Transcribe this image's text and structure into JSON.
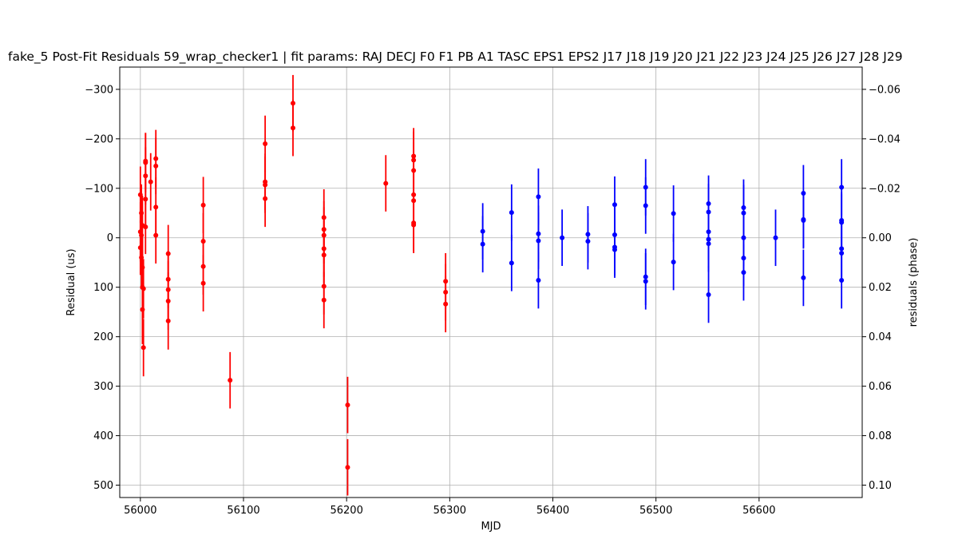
{
  "chart_data": {
    "type": "scatter",
    "title": "fake_5 Post-Fit Residuals 59_wrap_checker1 | fit params: RAJ DECJ F0 F1 PB A1 TASC EPS1 EPS2 J17 J18 J19 J20 J21 J22 J23 J24 J25 J26 J27 J28 J29",
    "xlabel": "MJD",
    "ylabel": "Residual (us)",
    "y2label": "residuals (phase)",
    "xlim": [
      55980,
      56700
    ],
    "ylim": [
      525,
      -345
    ],
    "y2lim": [
      0.105,
      -0.069
    ],
    "y_inverted": true,
    "grid": true,
    "legend": "none",
    "x_ticks": [
      56000,
      56100,
      56200,
      56300,
      56400,
      56500,
      56600
    ],
    "x_tick_labels": [
      "56000",
      "56100",
      "56200",
      "56300",
      "56400",
      "56500",
      "56600"
    ],
    "y_ticks": [
      -300,
      -200,
      -100,
      0,
      100,
      200,
      300,
      400,
      500
    ],
    "y_tick_labels": [
      "−300",
      "−200",
      "−100",
      "0",
      "100",
      "200",
      "300",
      "400",
      "500"
    ],
    "y2_ticks": [
      -0.06,
      -0.04,
      -0.02,
      0.0,
      0.02,
      0.04,
      0.06,
      0.08,
      0.1
    ],
    "y2_tick_labels": [
      "−0.06",
      "−0.04",
      "−0.02",
      "0.00",
      "0.02",
      "0.04",
      "0.06",
      "0.08",
      "0.10"
    ],
    "series": [
      {
        "color": "#ff0000",
        "points": [
          {
            "x": 56000,
            "y": -87,
            "err": 57
          },
          {
            "x": 56000,
            "y": -12,
            "err": 60
          },
          {
            "x": 56000,
            "y": 20,
            "err": 55
          },
          {
            "x": 56001,
            "y": 40,
            "err": 60
          },
          {
            "x": 56001,
            "y": -50,
            "err": 58
          },
          {
            "x": 56001,
            "y": -5,
            "err": 60
          },
          {
            "x": 56002,
            "y": 145,
            "err": 70
          },
          {
            "x": 56002,
            "y": 100,
            "err": 65
          },
          {
            "x": 56002,
            "y": -25,
            "err": 60
          },
          {
            "x": 56003,
            "y": 222,
            "err": 58
          },
          {
            "x": 56003,
            "y": 103,
            "err": 60
          },
          {
            "x": 56002,
            "y": 60,
            "err": 60
          },
          {
            "x": 56005,
            "y": -152,
            "err": 60
          },
          {
            "x": 56005,
            "y": -125,
            "err": 58
          },
          {
            "x": 56005,
            "y": -78,
            "err": 55
          },
          {
            "x": 56005,
            "y": -22,
            "err": 55
          },
          {
            "x": 56005,
            "y": -155,
            "err": 57
          },
          {
            "x": 56010,
            "y": -113,
            "err": 58
          },
          {
            "x": 56015,
            "y": -160,
            "err": 58
          },
          {
            "x": 56015,
            "y": -145,
            "err": 57
          },
          {
            "x": 56015,
            "y": -62,
            "err": 60
          },
          {
            "x": 56015,
            "y": -5,
            "err": 57
          },
          {
            "x": 56027,
            "y": 32,
            "err": 58
          },
          {
            "x": 56027,
            "y": 84,
            "err": 58
          },
          {
            "x": 56027,
            "y": 105,
            "err": 58
          },
          {
            "x": 56027,
            "y": 128,
            "err": 58
          },
          {
            "x": 56027,
            "y": 168,
            "err": 58
          },
          {
            "x": 56061,
            "y": -66,
            "err": 57
          },
          {
            "x": 56061,
            "y": 7,
            "err": 57
          },
          {
            "x": 56061,
            "y": 58,
            "err": 57
          },
          {
            "x": 56061,
            "y": 92,
            "err": 57
          },
          {
            "x": 56087,
            "y": 288,
            "err": 57
          },
          {
            "x": 56121,
            "y": -190,
            "err": 57
          },
          {
            "x": 56121,
            "y": -113,
            "err": 57
          },
          {
            "x": 56121,
            "y": -107,
            "err": 57
          },
          {
            "x": 56121,
            "y": -79,
            "err": 57
          },
          {
            "x": 56148,
            "y": -272,
            "err": 57
          },
          {
            "x": 56148,
            "y": -222,
            "err": 57
          },
          {
            "x": 56178,
            "y": -41,
            "err": 57
          },
          {
            "x": 56178,
            "y": -17,
            "err": 57
          },
          {
            "x": 56178,
            "y": -5,
            "err": 57
          },
          {
            "x": 56178,
            "y": 22,
            "err": 57
          },
          {
            "x": 56178,
            "y": 35,
            "err": 57
          },
          {
            "x": 56178,
            "y": 98,
            "err": 57
          },
          {
            "x": 56178,
            "y": 126,
            "err": 57
          },
          {
            "x": 56201,
            "y": 338,
            "err": 57
          },
          {
            "x": 56201,
            "y": 464,
            "err": 57
          },
          {
            "x": 56238,
            "y": -110,
            "err": 57
          },
          {
            "x": 56265,
            "y": -165,
            "err": 57
          },
          {
            "x": 56265,
            "y": -157,
            "err": 57
          },
          {
            "x": 56265,
            "y": -136,
            "err": 57
          },
          {
            "x": 56265,
            "y": -87,
            "err": 57
          },
          {
            "x": 56265,
            "y": -75,
            "err": 57
          },
          {
            "x": 56265,
            "y": -30,
            "err": 57
          },
          {
            "x": 56265,
            "y": -26,
            "err": 57
          },
          {
            "x": 56296,
            "y": 88,
            "err": 57
          },
          {
            "x": 56296,
            "y": 110,
            "err": 57
          },
          {
            "x": 56296,
            "y": 134,
            "err": 57
          }
        ]
      },
      {
        "color": "#0000ff",
        "points": [
          {
            "x": 56332,
            "y": -13,
            "err": 57
          },
          {
            "x": 56332,
            "y": 13,
            "err": 57
          },
          {
            "x": 56360,
            "y": -51,
            "err": 57
          },
          {
            "x": 56360,
            "y": 51,
            "err": 57
          },
          {
            "x": 56386,
            "y": -83,
            "err": 57
          },
          {
            "x": 56386,
            "y": -8,
            "err": 57
          },
          {
            "x": 56386,
            "y": 6,
            "err": 57
          },
          {
            "x": 56386,
            "y": 86,
            "err": 57
          },
          {
            "x": 56409,
            "y": 0,
            "err": 57
          },
          {
            "x": 56434,
            "y": -7,
            "err": 57
          },
          {
            "x": 56434,
            "y": 7,
            "err": 57
          },
          {
            "x": 56460,
            "y": -67,
            "err": 57
          },
          {
            "x": 56460,
            "y": -6,
            "err": 57
          },
          {
            "x": 56460,
            "y": 19,
            "err": 57
          },
          {
            "x": 56460,
            "y": 24,
            "err": 57
          },
          {
            "x": 56490,
            "y": -102,
            "err": 57
          },
          {
            "x": 56490,
            "y": -65,
            "err": 57
          },
          {
            "x": 56490,
            "y": 79,
            "err": 57
          },
          {
            "x": 56490,
            "y": 88,
            "err": 57
          },
          {
            "x": 56517,
            "y": -49,
            "err": 57
          },
          {
            "x": 56517,
            "y": 49,
            "err": 57
          },
          {
            "x": 56551,
            "y": -69,
            "err": 57
          },
          {
            "x": 56551,
            "y": -52,
            "err": 57
          },
          {
            "x": 56551,
            "y": -12,
            "err": 57
          },
          {
            "x": 56551,
            "y": 3,
            "err": 57
          },
          {
            "x": 56551,
            "y": 12,
            "err": 57
          },
          {
            "x": 56551,
            "y": 115,
            "err": 57
          },
          {
            "x": 56585,
            "y": -61,
            "err": 57
          },
          {
            "x": 56585,
            "y": -50,
            "err": 57
          },
          {
            "x": 56585,
            "y": 0,
            "err": 57
          },
          {
            "x": 56585,
            "y": 41,
            "err": 57
          },
          {
            "x": 56585,
            "y": 70,
            "err": 57
          },
          {
            "x": 56616,
            "y": 0,
            "err": 57
          },
          {
            "x": 56643,
            "y": -90,
            "err": 57
          },
          {
            "x": 56643,
            "y": -37,
            "err": 57
          },
          {
            "x": 56643,
            "y": -35,
            "err": 57
          },
          {
            "x": 56643,
            "y": 81,
            "err": 57
          },
          {
            "x": 56680,
            "y": -102,
            "err": 57
          },
          {
            "x": 56680,
            "y": -35,
            "err": 57
          },
          {
            "x": 56680,
            "y": -31,
            "err": 57
          },
          {
            "x": 56680,
            "y": 22,
            "err": 57
          },
          {
            "x": 56680,
            "y": 31,
            "err": 57
          },
          {
            "x": 56680,
            "y": 86,
            "err": 57
          }
        ]
      }
    ]
  }
}
